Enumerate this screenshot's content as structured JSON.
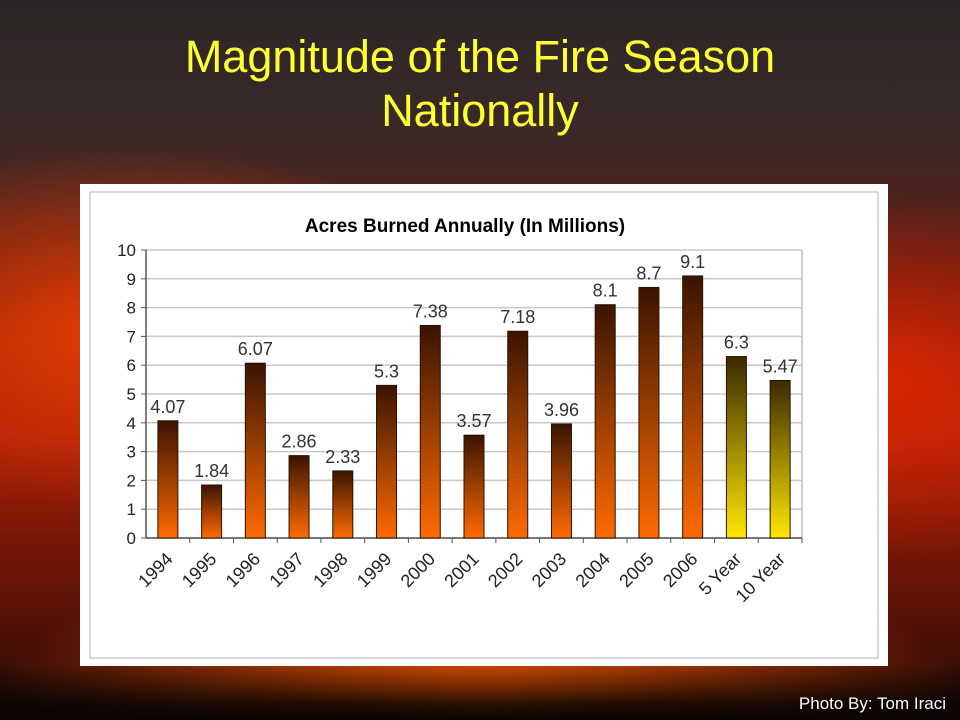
{
  "slide": {
    "title_line1": "Magnitude of the Fire Season",
    "title_line2": "Nationally",
    "photo_credit": "Photo By: Tom Iraci"
  },
  "chart_data": {
    "type": "bar",
    "title": "Acres Burned Annually (In Millions)",
    "categories": [
      "1994",
      "1995",
      "1996",
      "1997",
      "1998",
      "1999",
      "2000",
      "2001",
      "2002",
      "2003",
      "2004",
      "2005",
      "2006",
      "5 Year",
      "10 Year"
    ],
    "values": [
      4.07,
      1.84,
      6.07,
      2.86,
      2.33,
      5.3,
      7.38,
      3.57,
      7.18,
      3.96,
      8.1,
      8.7,
      9.1,
      6.3,
      5.47
    ],
    "value_labels": [
      "4.07",
      "1.84",
      "6.07",
      "2.86",
      "2.33",
      "5.3",
      "7.38",
      "3.57",
      "7.18",
      "3.96",
      "8.1",
      "8.7",
      "9.1",
      "6.3",
      "5.47"
    ],
    "yticks": [
      "0",
      "1",
      "2",
      "3",
      "4",
      "5",
      "6",
      "7",
      "8",
      "9",
      "10"
    ],
    "ylim": [
      0,
      10
    ],
    "grid": true,
    "legend": "none",
    "colors": {
      "year_bar_top": "#3a1400",
      "year_bar_bottom": "#ff6a00",
      "avg_bar_top": "#3a2a00",
      "avg_bar_bottom": "#ffe600",
      "plot_bg": "#ffffff",
      "grid": "#c8c8c8"
    }
  }
}
